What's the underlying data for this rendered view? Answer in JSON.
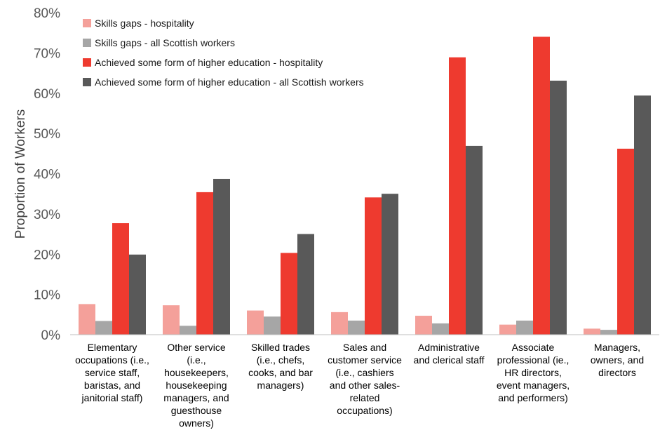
{
  "chart_data": {
    "type": "bar",
    "ylabel": "Proportion of Workers",
    "xlabel": "",
    "ylim": [
      0,
      80
    ],
    "yticks": [
      "0%",
      "10%",
      "20%",
      "30%",
      "40%",
      "50%",
      "60%",
      "70%",
      "80%"
    ],
    "grid": false,
    "legend_position": "top-left",
    "categories": [
      [
        "Elementary",
        "occupations (i.e.,",
        "service staff,",
        "baristas, and",
        "janitorial staff)"
      ],
      [
        "Other service",
        "(i.e.,",
        "housekeepers,",
        "housekeeping",
        "managers, and",
        "guesthouse",
        "owners)"
      ],
      [
        "Skilled trades",
        "(i.e., chefs,",
        "cooks, and bar",
        "managers)"
      ],
      [
        "Sales and",
        "customer service",
        "(i.e., cashiers",
        "and other sales-",
        "related",
        "occupations)"
      ],
      [
        "Administrative",
        "and clerical staff"
      ],
      [
        "Associate",
        "professional (ie.,",
        "HR directors,",
        "event managers,",
        "and performers)"
      ],
      [
        "Managers,",
        "owners, and",
        "directors"
      ]
    ],
    "series": [
      {
        "name": "Skills gaps - hospitality",
        "color": "#f4a09a",
        "values": [
          7.6,
          7.3,
          6.0,
          5.6,
          4.7,
          2.5,
          1.5
        ]
      },
      {
        "name": "Skills gaps - all Scottish workers",
        "color": "#a6a6a6",
        "values": [
          3.4,
          2.2,
          4.5,
          3.5,
          2.8,
          3.5,
          1.2
        ]
      },
      {
        "name": "Achieved some form of higher education - hospitality",
        "color": "#ee3a2f",
        "values": [
          27.7,
          35.4,
          20.3,
          34.1,
          68.9,
          74.0,
          46.2
        ]
      },
      {
        "name": "Achieved some form of higher education - all Scottish workers",
        "color": "#595959",
        "values": [
          19.9,
          38.7,
          25.0,
          35.0,
          46.9,
          63.1,
          59.4
        ]
      }
    ]
  }
}
